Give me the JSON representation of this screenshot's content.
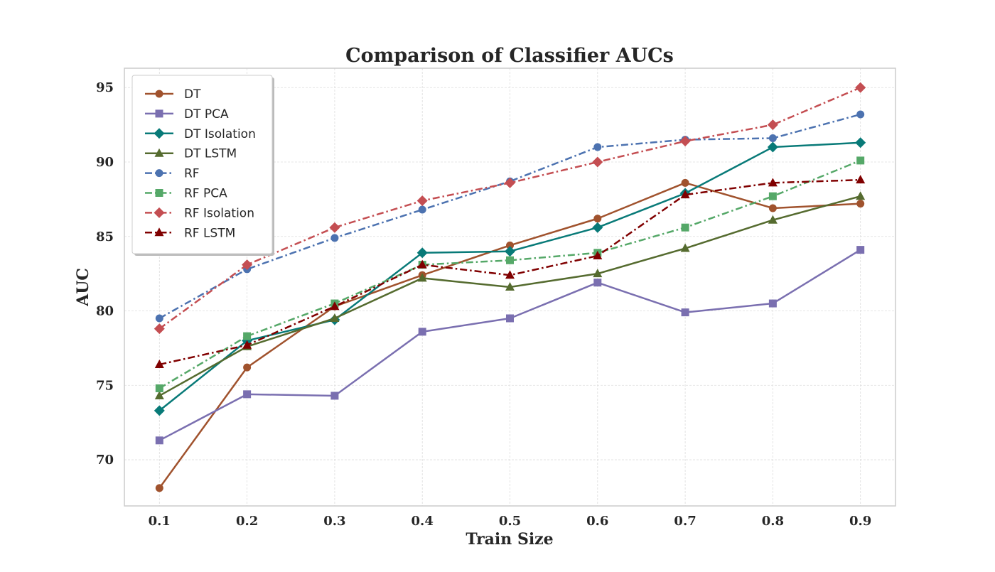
{
  "chart_data": {
    "type": "line",
    "title": "Comparison of Classifier AUCs",
    "xlabel": "Train Size",
    "ylabel": "AUC",
    "x": [
      0.1,
      0.2,
      0.3,
      0.4,
      0.5,
      0.6,
      0.7,
      0.8,
      0.9
    ],
    "x_tick_labels": [
      "0.1",
      "0.2",
      "0.3",
      "0.4",
      "0.5",
      "0.6",
      "0.7",
      "0.8",
      "0.9"
    ],
    "y_ticks": [
      70,
      75,
      80,
      85,
      90,
      95
    ],
    "y_tick_labels": [
      "70",
      "75",
      "80",
      "85",
      "90",
      "95"
    ],
    "xlim": [
      0.06,
      0.94
    ],
    "ylim": [
      66.9,
      96.3
    ],
    "grid": true,
    "legend_position": "top-left",
    "series": [
      {
        "name": "DT",
        "color": "#a0522d",
        "dash": "solid",
        "marker": "circle",
        "values": [
          68.1,
          76.2,
          80.3,
          82.4,
          84.4,
          86.2,
          88.6,
          86.9,
          87.2
        ]
      },
      {
        "name": "DT PCA",
        "color": "#7a6fb0",
        "dash": "solid",
        "marker": "square",
        "values": [
          71.3,
          74.4,
          74.3,
          78.6,
          79.5,
          81.9,
          79.9,
          80.5,
          84.1
        ]
      },
      {
        "name": "DT Isolation",
        "color": "#087a78",
        "dash": "solid",
        "marker": "diamond",
        "values": [
          73.3,
          78.0,
          79.4,
          83.9,
          84.0,
          85.6,
          87.9,
          91.0,
          91.3
        ]
      },
      {
        "name": "DT LSTM",
        "color": "#556b2f",
        "dash": "solid",
        "marker": "triangle",
        "values": [
          74.3,
          77.6,
          79.5,
          82.2,
          81.6,
          82.5,
          84.2,
          86.1,
          87.7
        ]
      },
      {
        "name": "RF",
        "color": "#4c72b0",
        "dash": "dashdot",
        "marker": "circle",
        "values": [
          79.5,
          82.8,
          84.9,
          86.8,
          88.7,
          91.0,
          91.5,
          91.6,
          93.2
        ]
      },
      {
        "name": "RF PCA",
        "color": "#55a868",
        "dash": "dashdot",
        "marker": "square",
        "values": [
          74.8,
          78.3,
          80.5,
          83.1,
          83.4,
          83.9,
          85.6,
          87.7,
          90.1
        ]
      },
      {
        "name": "RF Isolation",
        "color": "#c44e52",
        "dash": "dashdot",
        "marker": "diamond",
        "values": [
          78.8,
          83.1,
          85.6,
          87.4,
          88.6,
          90.0,
          91.4,
          92.5,
          95.0
        ]
      },
      {
        "name": "RF LSTM",
        "color": "#800000",
        "dash": "dashdot",
        "marker": "triangle",
        "values": [
          76.4,
          77.7,
          80.3,
          83.1,
          82.4,
          83.7,
          87.8,
          88.6,
          88.8
        ]
      }
    ]
  }
}
